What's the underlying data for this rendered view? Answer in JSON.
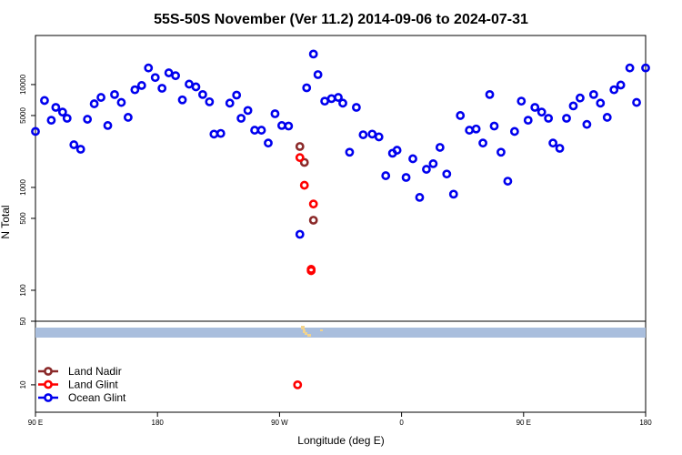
{
  "chart_data": {
    "type": "scatter",
    "title": "55S-50S November (Ver 11.2)   2014-09-06 to 2024-07-31",
    "xlabel": "Longitude (deg E)",
    "ylabel": "N Total",
    "xlim": [
      -90,
      180
    ],
    "x_ticks": [
      {
        "value": -90,
        "label": "90 E"
      },
      {
        "value": -36,
        "label": "180"
      },
      {
        "value": 18,
        "label": "90 W"
      },
      {
        "value": 72,
        "label": "0"
      },
      {
        "value": 126,
        "label": "90 E"
      },
      {
        "value": 180,
        "label": "180"
      }
    ],
    "y_scale": "log",
    "upper_panel": {
      "ylim": [
        50,
        30000
      ],
      "y_ticks": [
        {
          "value": 50,
          "label": "50"
        },
        {
          "value": 100,
          "label": "100"
        },
        {
          "value": 500,
          "label": "500"
        },
        {
          "value": 1000,
          "label": "1000"
        },
        {
          "value": 5000,
          "label": "5000"
        },
        {
          "value": 10000,
          "label": "10000"
        }
      ]
    },
    "lower_panel": {
      "ylim": [
        5,
        50
      ],
      "y_ticks": [
        {
          "value": 10,
          "label": "10"
        }
      ]
    },
    "legend_position": "bottom-left",
    "series": [
      {
        "name": "Land Nadir",
        "color": "#8B2A2A",
        "points": [
          [
            27,
            2500
          ],
          [
            29,
            1750
          ],
          [
            33,
            480
          ]
        ]
      },
      {
        "name": "Land Glint",
        "color": "#FF0000",
        "points": [
          [
            27,
            1950
          ],
          [
            29,
            1050
          ],
          [
            33,
            690
          ],
          [
            32,
            160
          ],
          [
            32,
            155
          ],
          [
            26,
            10
          ]
        ]
      },
      {
        "name": "Ocean Glint",
        "color": "#0000EE",
        "points": [
          [
            -90,
            3500
          ],
          [
            -86,
            7000
          ],
          [
            -83,
            4500
          ],
          [
            -81,
            6000
          ],
          [
            -78,
            5400
          ],
          [
            -76,
            4700
          ],
          [
            -73,
            2600
          ],
          [
            -70,
            2350
          ],
          [
            -67,
            4600
          ],
          [
            -64,
            6500
          ],
          [
            -61,
            7500
          ],
          [
            -58,
            4000
          ],
          [
            -55,
            8000
          ],
          [
            -52,
            6700
          ],
          [
            -49,
            4800
          ],
          [
            -46,
            8900
          ],
          [
            -43,
            9800
          ],
          [
            -40,
            14500
          ],
          [
            -37,
            11700
          ],
          [
            -34,
            9200
          ],
          [
            -31,
            13000
          ],
          [
            -28,
            12200
          ],
          [
            -25,
            7100
          ],
          [
            -22,
            10100
          ],
          [
            -19,
            9500
          ],
          [
            -16,
            8000
          ],
          [
            -13,
            6800
          ],
          [
            -11,
            3300
          ],
          [
            -8,
            3350
          ],
          [
            -4,
            6600
          ],
          [
            -1,
            7900
          ],
          [
            1,
            4700
          ],
          [
            4,
            5600
          ],
          [
            7,
            3600
          ],
          [
            10,
            3600
          ],
          [
            13,
            2700
          ],
          [
            16,
            5200
          ],
          [
            19,
            4000
          ],
          [
            22,
            3950
          ],
          [
            27,
            350
          ],
          [
            30,
            9300
          ],
          [
            33,
            19800
          ],
          [
            35,
            12500
          ],
          [
            38,
            6900
          ],
          [
            41,
            7300
          ],
          [
            44,
            7500
          ],
          [
            46,
            6600
          ],
          [
            49,
            2200
          ],
          [
            52,
            6000
          ],
          [
            55,
            3250
          ],
          [
            59,
            3300
          ],
          [
            62,
            3100
          ],
          [
            65,
            1300
          ],
          [
            68,
            2150
          ],
          [
            70,
            2300
          ],
          [
            74,
            1250
          ],
          [
            77,
            1900
          ],
          [
            80,
            800
          ],
          [
            83,
            1500
          ],
          [
            86,
            1700
          ],
          [
            89,
            2450
          ],
          [
            92,
            1350
          ],
          [
            95,
            860
          ],
          [
            98,
            5000
          ],
          [
            102,
            3600
          ],
          [
            105,
            3700
          ],
          [
            108,
            2700
          ],
          [
            111,
            8000
          ],
          [
            113,
            3950
          ],
          [
            116,
            2200
          ],
          [
            119,
            1150
          ],
          [
            122,
            3500
          ],
          [
            125,
            6900
          ],
          [
            128,
            4500
          ],
          [
            131,
            6000
          ],
          [
            134,
            5400
          ],
          [
            137,
            4700
          ],
          [
            139,
            2700
          ],
          [
            142,
            2400
          ],
          [
            145,
            4700
          ],
          [
            148,
            6200
          ],
          [
            151,
            7400
          ],
          [
            154,
            4100
          ],
          [
            157,
            8000
          ],
          [
            160,
            6600
          ],
          [
            163,
            4800
          ],
          [
            166,
            8900
          ],
          [
            169,
            9900
          ],
          [
            173,
            14500
          ],
          [
            176,
            6700
          ],
          [
            180,
            14500
          ]
        ]
      }
    ]
  }
}
